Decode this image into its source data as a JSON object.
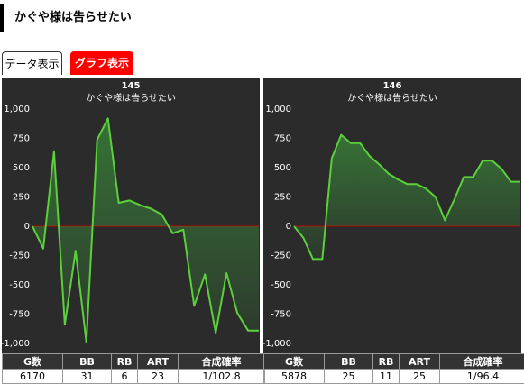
{
  "header": {
    "title": "かぐや様は告らせたい"
  },
  "tabs": [
    "データ表示",
    "グラフ表示"
  ],
  "chart_data": [
    {
      "type": "line",
      "title": "145",
      "subtitle": "かぐや様は告らせたい",
      "color": "#5ccf3c",
      "zero_line_color": "#c00000",
      "values": [
        0,
        -190,
        640,
        -840,
        -210,
        -990,
        740,
        920,
        200,
        220,
        180,
        150,
        100,
        -60,
        -30,
        -680,
        -410,
        -910,
        -400,
        -740,
        -890,
        -890
      ],
      "ylim": [
        -1000,
        1000
      ],
      "yticks": [
        {
          "value": 1000,
          "label": "1,000"
        },
        750,
        500,
        250,
        0,
        -250,
        -500,
        -750,
        {
          "value": -1000,
          "label": "-1,000"
        }
      ]
    },
    {
      "type": "line",
      "title": "146",
      "subtitle": "かぐや様は告らせたい",
      "color": "#5ccf3c",
      "zero_line_color": "#c00000",
      "values": [
        0,
        -100,
        -280,
        -280,
        580,
        780,
        710,
        710,
        600,
        530,
        450,
        400,
        360,
        360,
        320,
        250,
        50,
        230,
        420,
        420,
        560,
        560,
        490,
        380,
        380
      ],
      "ylim": [
        -1000,
        1000
      ],
      "yticks": [
        {
          "value": 1000,
          "label": "1,000"
        },
        750,
        500,
        250,
        0,
        -250,
        -500,
        -750,
        {
          "value": -1000,
          "label": "-1,000"
        }
      ]
    }
  ],
  "tables": [
    {
      "columns": [
        "G数",
        "BB",
        "RB",
        "ART",
        "合成確率"
      ],
      "row": [
        6170,
        31,
        6,
        23,
        "1/102.8"
      ]
    },
    {
      "columns": [
        "G数",
        "BB",
        "RB",
        "ART",
        "合成確率"
      ],
      "row": [
        5878,
        25,
        11,
        25,
        "1/96.4"
      ]
    }
  ]
}
